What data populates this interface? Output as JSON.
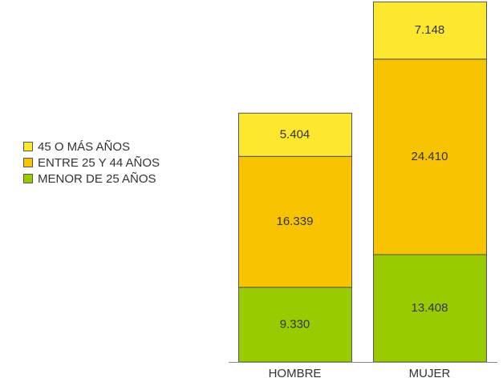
{
  "chart_data": {
    "type": "stacked_bar",
    "categories": [
      "HOMBRE",
      "MUJER"
    ],
    "series": [
      {
        "name": "MENOR DE 25 AÑOS",
        "color": "#99cc00",
        "values": [
          9330,
          13408
        ],
        "value_labels": [
          "9.330",
          "13.408"
        ]
      },
      {
        "name": "ENTRE 25 Y 44 AÑOS",
        "color": "#f8c300",
        "values": [
          16339,
          24410
        ],
        "value_labels": [
          "16.339",
          "24.410"
        ]
      },
      {
        "name": "45 O MÁS AÑOS",
        "color": "#fde72f",
        "values": [
          5404,
          7148
        ],
        "value_labels": [
          "5.404",
          "7.148"
        ]
      }
    ],
    "ylim": [
      0,
      45000
    ],
    "legend": "left"
  }
}
